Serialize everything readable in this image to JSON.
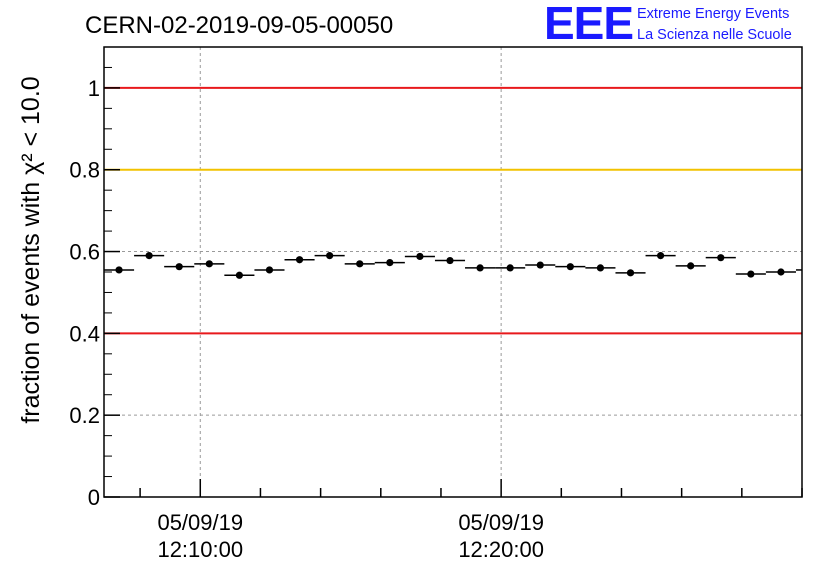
{
  "header": {
    "run_id": "CERN-02-2019-09-05-00050"
  },
  "logo": {
    "mark": "EEE",
    "line1": "Extreme Energy Events",
    "line2": "La Scienza nelle Scuole"
  },
  "chart_data": {
    "type": "scatter",
    "title": "CERN-02-2019-09-05-00050",
    "ylabel": "fraction of events with χ² < 10.0",
    "xlabel": "",
    "ylim": [
      0,
      1.1
    ],
    "yticks": [
      0,
      0.2,
      0.4,
      0.6,
      0.8,
      1
    ],
    "ytick_labels": [
      "0",
      "0.2",
      "0.4",
      "0.6",
      "0.8",
      "1"
    ],
    "x_axis": {
      "type": "time",
      "range_minutes": [
        -3.2,
        20
      ],
      "major_ticks": [
        {
          "minute": 0,
          "date": "05/09/19",
          "time": "12:10:00"
        },
        {
          "minute": 10,
          "date": "05/09/19",
          "time": "12:20:00"
        }
      ],
      "minor_tick_step_minutes": 2
    },
    "grid": true,
    "reference_lines": [
      {
        "y": 1.0,
        "color": "#e8191c"
      },
      {
        "y": 0.8,
        "color": "#f2c200"
      },
      {
        "y": 0.4,
        "color": "#e8191c"
      }
    ],
    "series": [
      {
        "color": "#000000",
        "bin_width_minutes": 1,
        "x": [
          -2.7,
          -1.7,
          -0.7,
          0.3,
          1.3,
          2.3,
          3.3,
          4.3,
          5.3,
          6.3,
          7.3,
          8.3,
          9.3,
          10.3,
          11.3,
          12.3,
          13.3,
          14.3,
          15.3,
          16.3,
          17.3,
          18.3,
          19.3,
          20.3
        ],
        "y": [
          0.555,
          0.59,
          0.563,
          0.57,
          0.542,
          0.555,
          0.58,
          0.59,
          0.57,
          0.573,
          0.588,
          0.578,
          0.56,
          0.56,
          0.567,
          0.563,
          0.56,
          0.548,
          0.59,
          0.565,
          0.585,
          0.545,
          0.55,
          0.555
        ]
      }
    ]
  }
}
